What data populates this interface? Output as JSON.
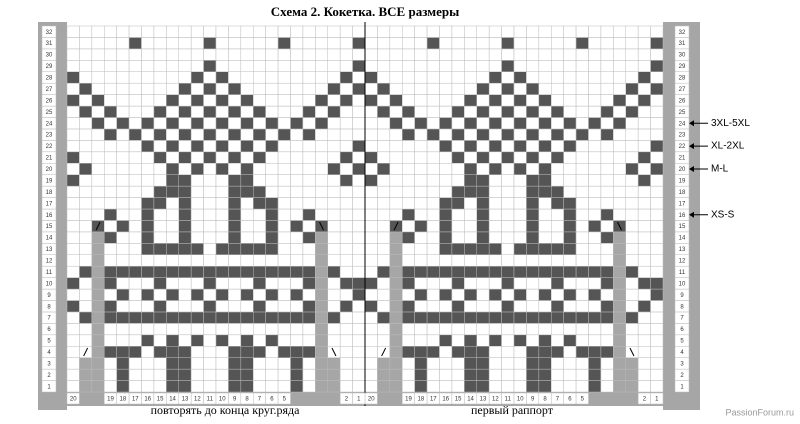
{
  "title": "Схема 2. Кокетка. ВСЕ размеры",
  "row_numbers": [
    1,
    2,
    3,
    4,
    5,
    6,
    7,
    8,
    9,
    10,
    11,
    12,
    13,
    14,
    15,
    16,
    17,
    18,
    19,
    20,
    21,
    22,
    23,
    24,
    25,
    26,
    27,
    28,
    29,
    30,
    31,
    32
  ],
  "column_numbers": [
    20,
    19,
    18,
    17,
    16,
    15,
    14,
    13,
    12,
    11,
    10,
    9,
    8,
    7,
    6,
    5,
    2,
    1
  ],
  "captions": {
    "repeat": "повторять до конца круг.ряда",
    "first_repeat": "первый раппорт"
  },
  "size_labels": [
    "3XL-5XL",
    "XL-2XL",
    "M-L",
    "XS-S"
  ],
  "watermark": "PassionForum.ru"
}
